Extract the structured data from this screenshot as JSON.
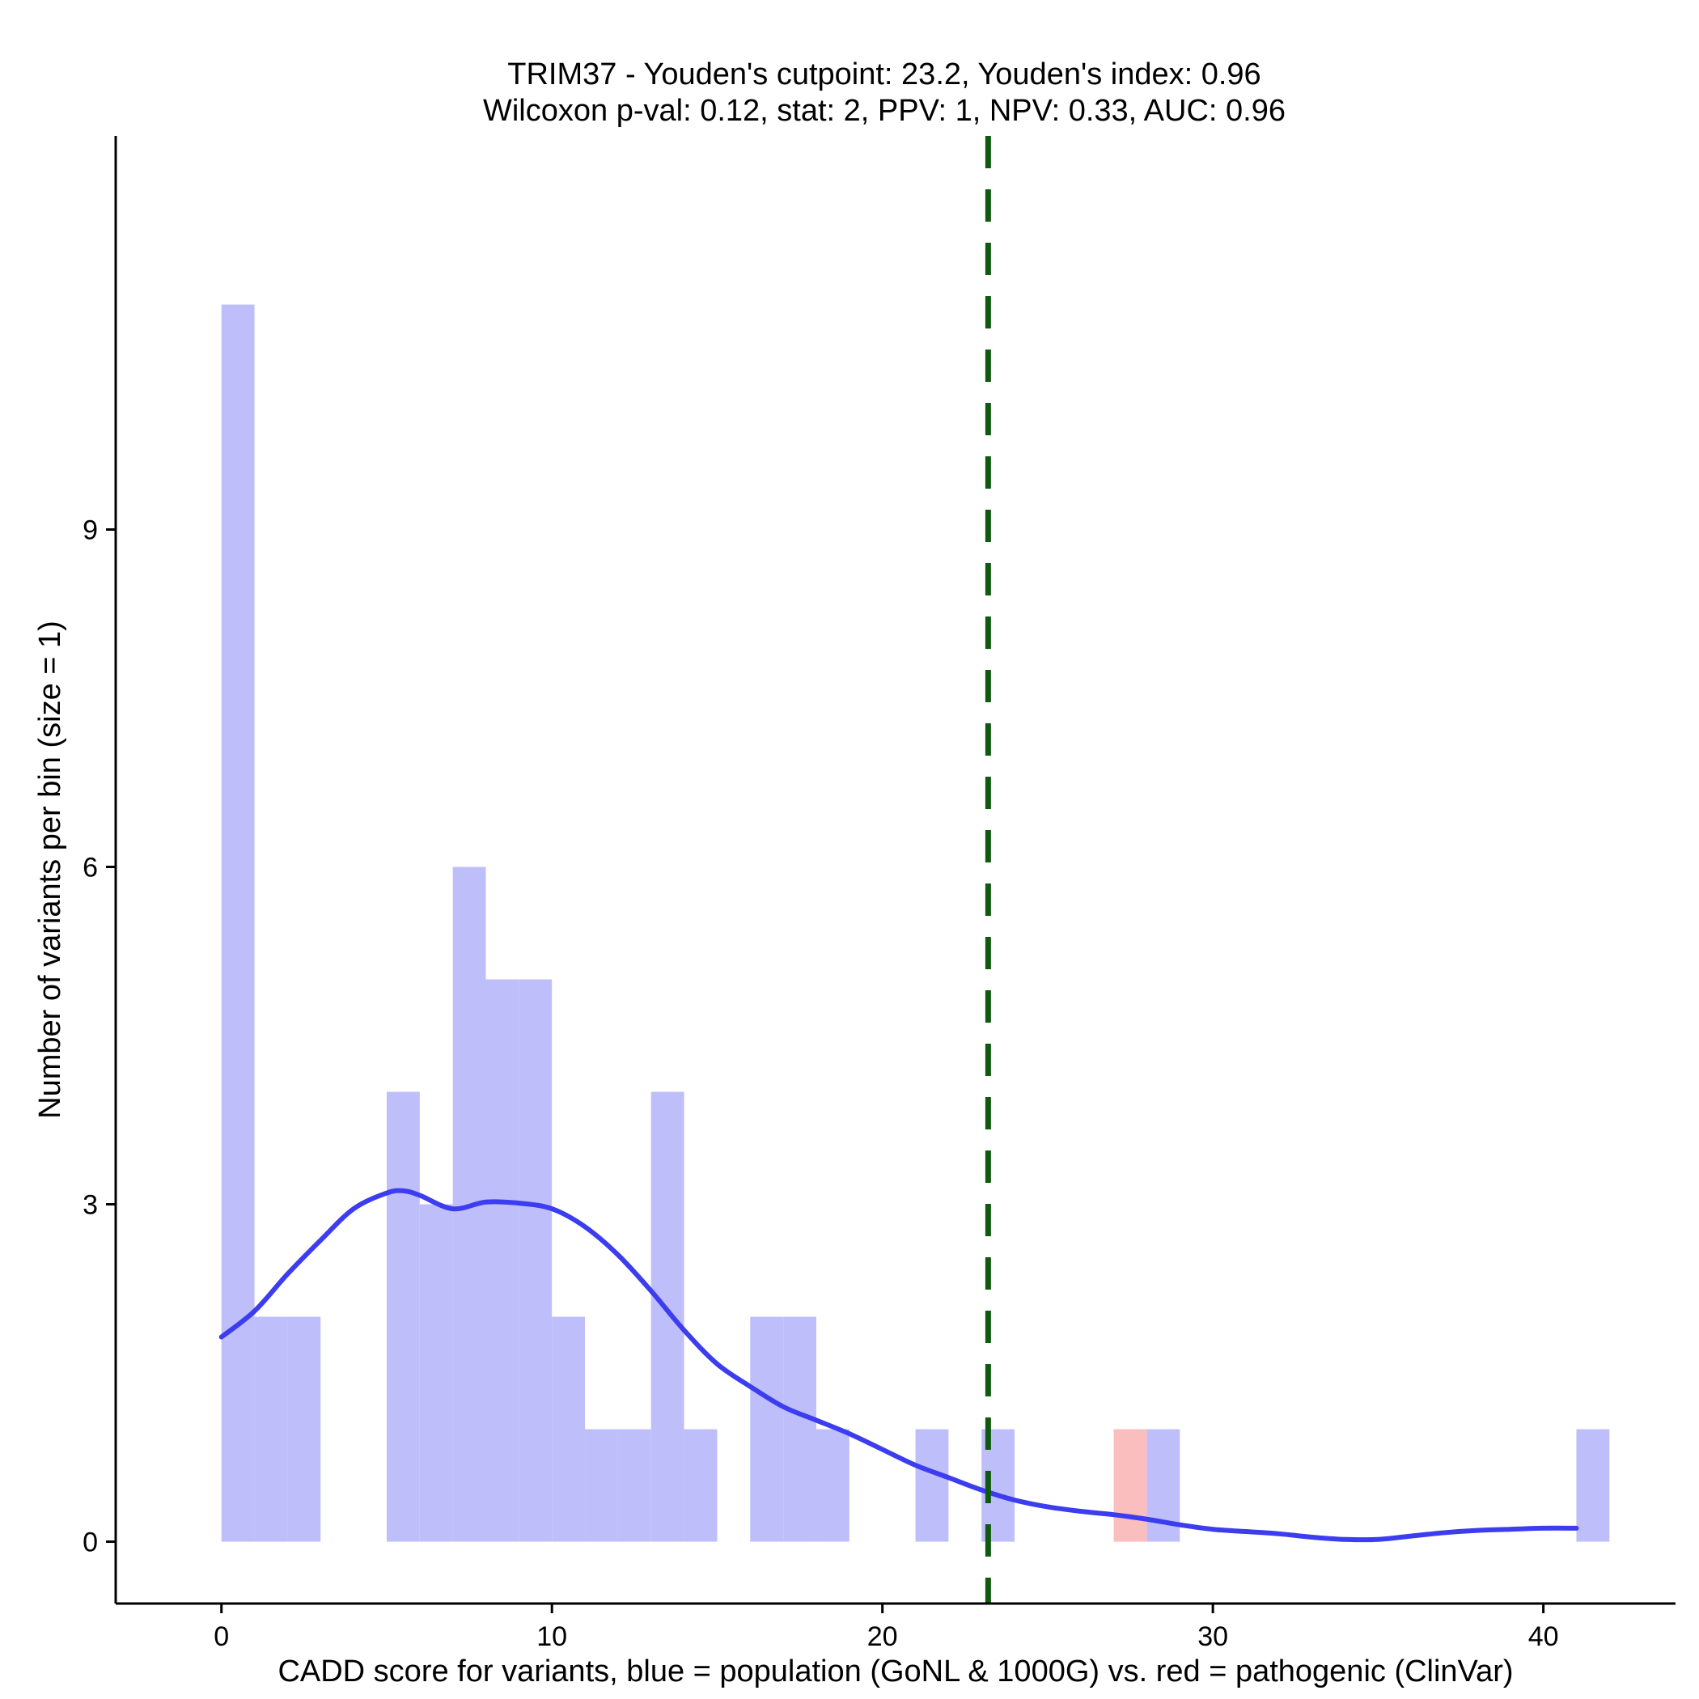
{
  "chart_data": {
    "type": "histogram",
    "title_lines": [
      "TRIM37 - Youden's cutpoint: 23.2, Youden's index: 0.96",
      "Wilcoxon p-val: 0.12, stat: 2, PPV: 1, NPV: 0.33, AUC: 0.96"
    ],
    "xlabel": "CADD score for variants, blue = population (GoNL & 1000G) vs. red = pathogenic (ClinVar)",
    "ylabel": "Number of variants per bin (size = 1)",
    "xlim": [
      -3.2,
      44
    ],
    "ylim": [
      -0.55,
      12.5
    ],
    "x_ticks": [
      0,
      10,
      20,
      30,
      40
    ],
    "x_tick_labels": [
      "0",
      "10",
      "20",
      "30",
      "40"
    ],
    "y_ticks": [
      0,
      3,
      6,
      9
    ],
    "y_tick_labels": [
      "0",
      "3",
      "6",
      "9"
    ],
    "bin_width": 1,
    "colors": {
      "population": "#bebefb",
      "pathogenic": "#fbbebe",
      "density": "#3c3cf0",
      "cutpoint": "#0f5a0f"
    },
    "series": [
      {
        "name": "population (GoNL & 1000G)",
        "bins": [
          {
            "x0": 0,
            "count": 11
          },
          {
            "x0": 1,
            "count": 2
          },
          {
            "x0": 2,
            "count": 2
          },
          {
            "x0": 5,
            "count": 4
          },
          {
            "x0": 6,
            "count": 3
          },
          {
            "x0": 7,
            "count": 6
          },
          {
            "x0": 8,
            "count": 5
          },
          {
            "x0": 9,
            "count": 5
          },
          {
            "x0": 10,
            "count": 2
          },
          {
            "x0": 11,
            "count": 1
          },
          {
            "x0": 12,
            "count": 1
          },
          {
            "x0": 13,
            "count": 4
          },
          {
            "x0": 14,
            "count": 1
          },
          {
            "x0": 16,
            "count": 2
          },
          {
            "x0": 17,
            "count": 2
          },
          {
            "x0": 18,
            "count": 1
          },
          {
            "x0": 21,
            "count": 1
          },
          {
            "x0": 23,
            "count": 1
          },
          {
            "x0": 28,
            "count": 1
          },
          {
            "x0": 41,
            "count": 1
          }
        ]
      },
      {
        "name": "pathogenic (ClinVar)",
        "bins": [
          {
            "x0": 27,
            "count": 1
          }
        ]
      }
    ],
    "density_curve": {
      "name": "population density (scaled)",
      "points": [
        [
          0,
          1.82
        ],
        [
          1,
          2.05
        ],
        [
          2,
          2.38
        ],
        [
          3,
          2.68
        ],
        [
          4,
          2.96
        ],
        [
          5,
          3.1
        ],
        [
          5.5,
          3.12
        ],
        [
          6,
          3.08
        ],
        [
          7,
          2.96
        ],
        [
          8,
          3.02
        ],
        [
          9,
          3.01
        ],
        [
          10,
          2.96
        ],
        [
          11,
          2.8
        ],
        [
          12,
          2.55
        ],
        [
          13,
          2.23
        ],
        [
          14,
          1.88
        ],
        [
          15,
          1.58
        ],
        [
          16,
          1.38
        ],
        [
          17,
          1.2
        ],
        [
          18,
          1.08
        ],
        [
          19,
          0.96
        ],
        [
          20,
          0.82
        ],
        [
          21,
          0.68
        ],
        [
          22,
          0.57
        ],
        [
          23,
          0.46
        ],
        [
          24,
          0.37
        ],
        [
          25,
          0.31
        ],
        [
          26,
          0.27
        ],
        [
          27,
          0.24
        ],
        [
          28,
          0.2
        ],
        [
          29,
          0.15
        ],
        [
          30,
          0.11
        ],
        [
          31,
          0.09
        ],
        [
          32,
          0.07
        ],
        [
          33,
          0.04
        ],
        [
          34,
          0.02
        ],
        [
          35,
          0.02
        ],
        [
          36,
          0.05
        ],
        [
          37,
          0.08
        ],
        [
          38,
          0.1
        ],
        [
          39,
          0.11
        ],
        [
          40,
          0.12
        ],
        [
          41,
          0.12
        ]
      ]
    },
    "cutpoint": {
      "x": 23.2,
      "style": "dashed"
    }
  }
}
